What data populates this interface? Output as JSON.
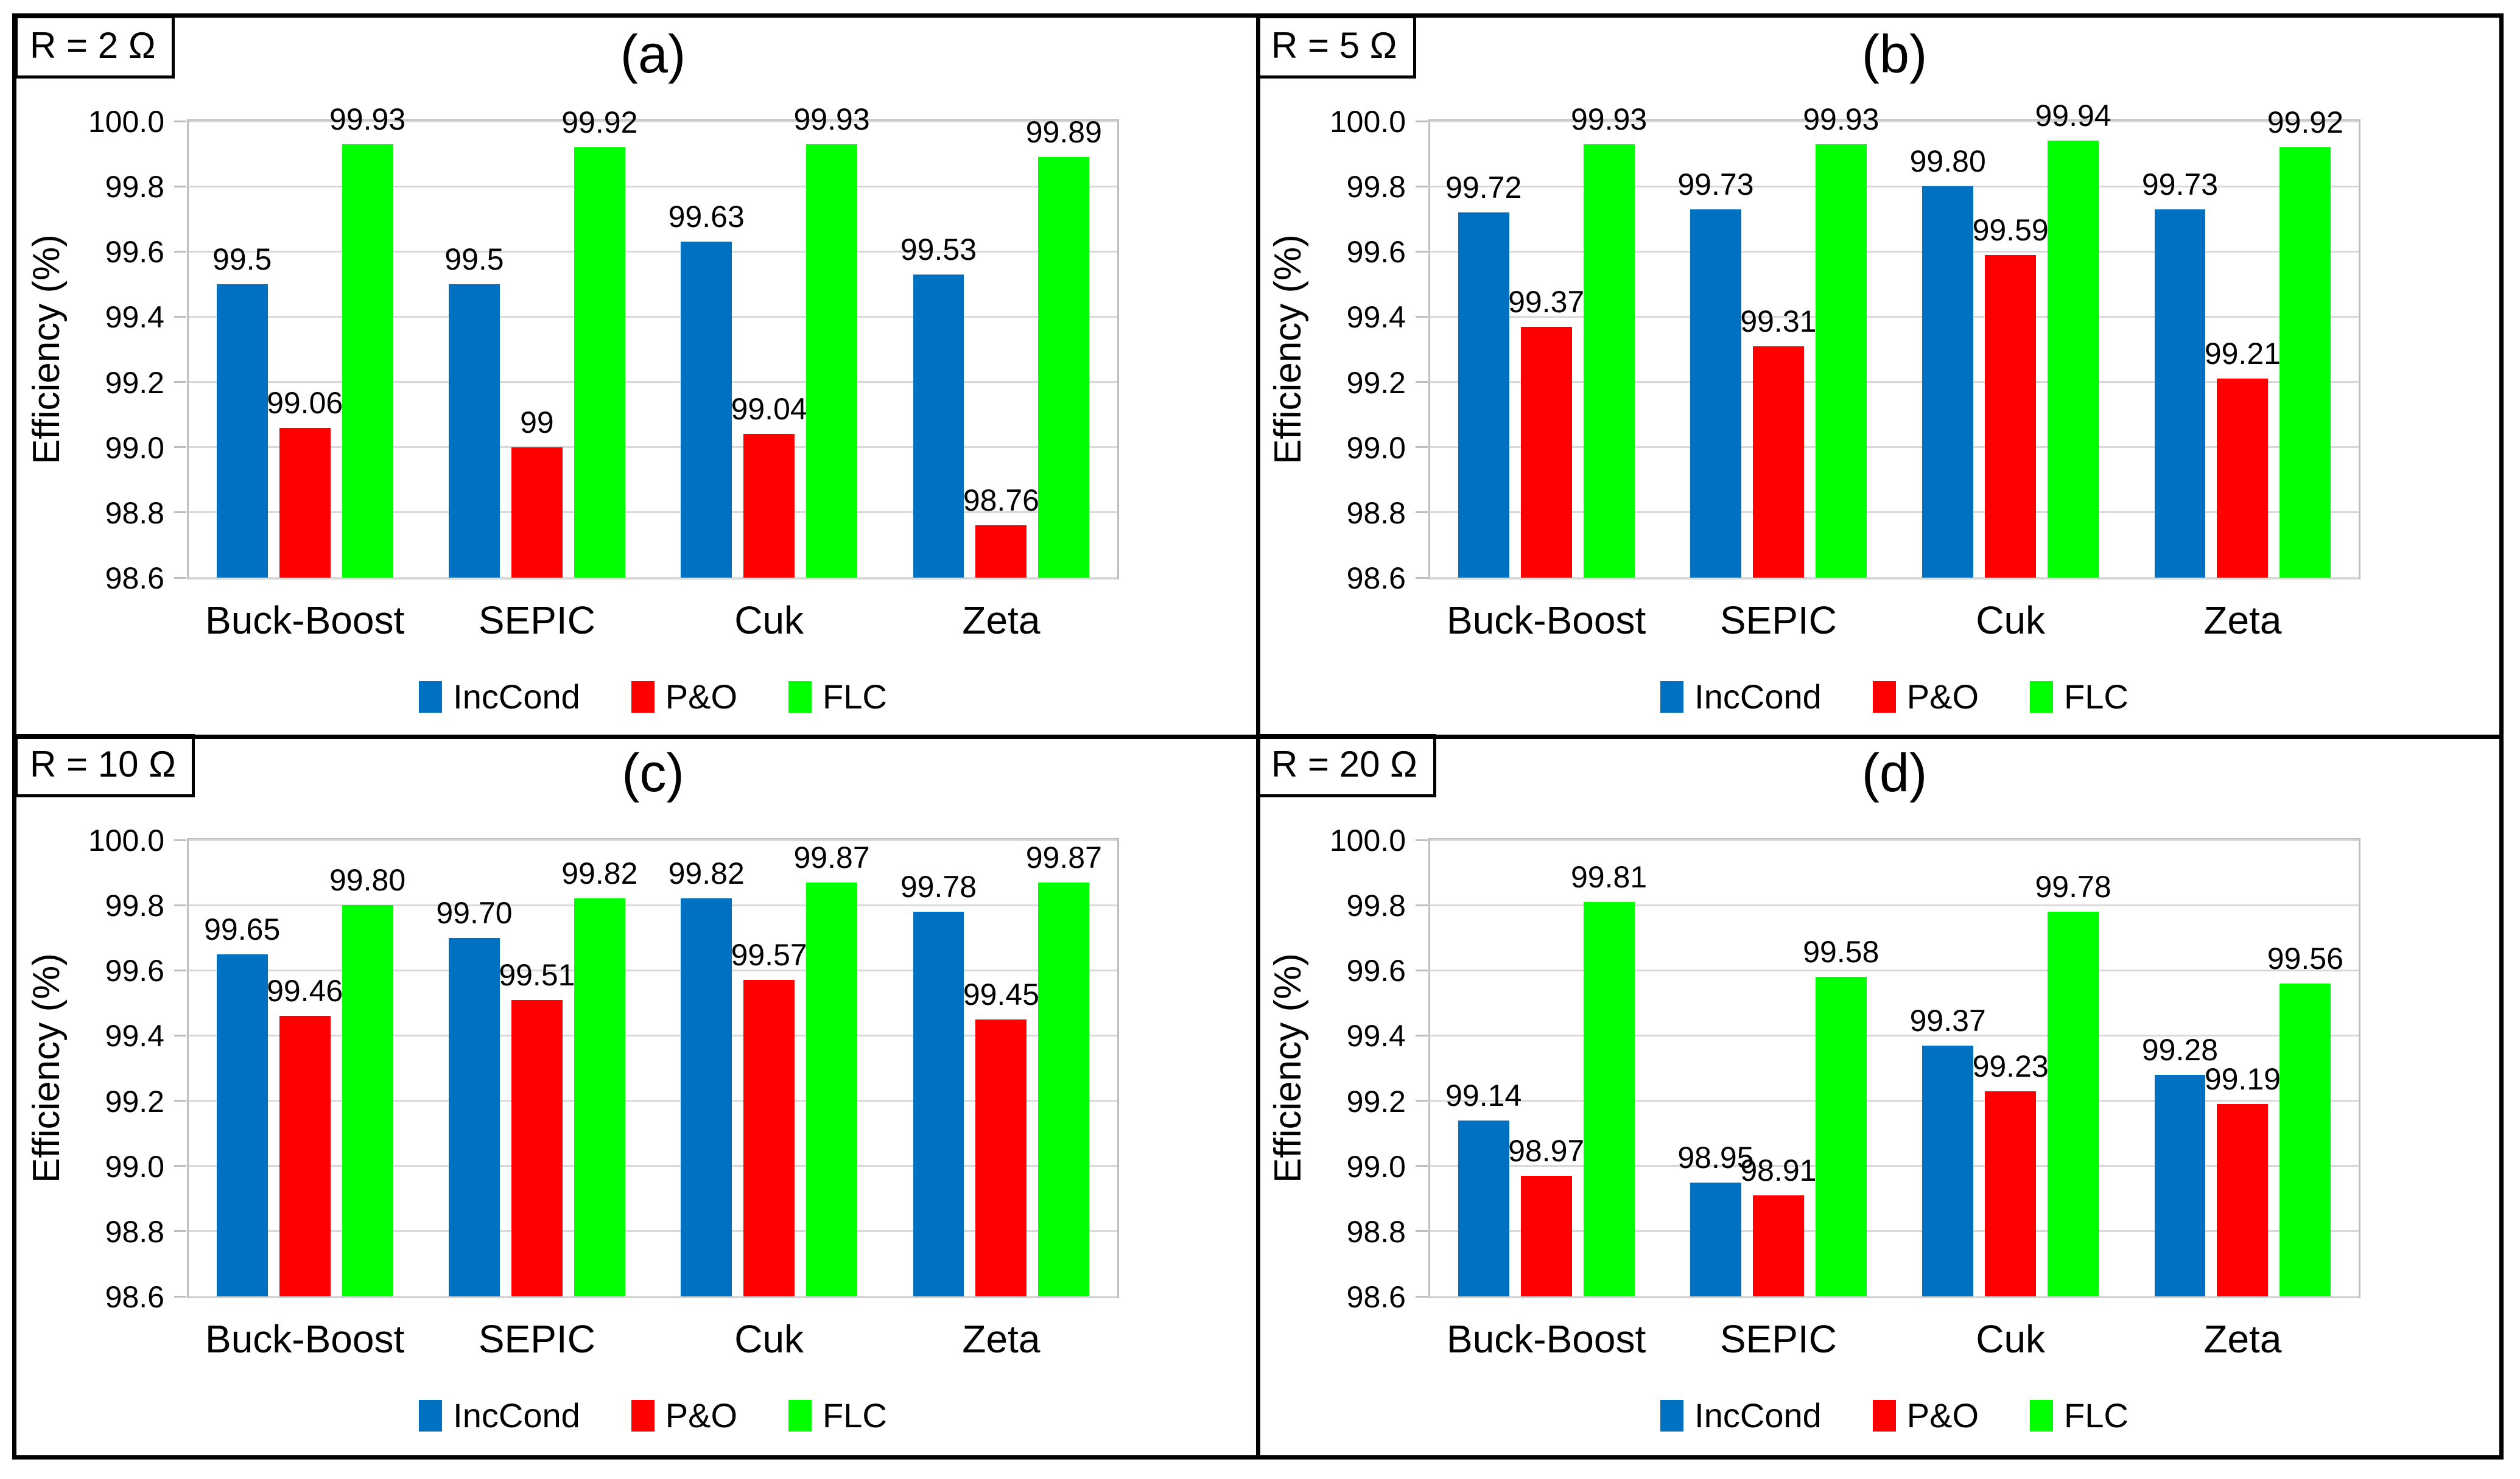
{
  "figure": {
    "background": "#FFFFFF",
    "border_color": "#000000"
  },
  "colors": {
    "inccond_blue": "#0070C0",
    "po_red": "#FF0000",
    "flc_green": "#00FF00",
    "gridline": "#D9D9D9",
    "plot_border": "#BFBFBF",
    "text": "#000000"
  },
  "legend": {
    "items": [
      {
        "label": "IncCond",
        "color": "#0070C0"
      },
      {
        "label": "P&O",
        "color": "#FF0000"
      },
      {
        "label": "FLC",
        "color": "#00FF00"
      }
    ]
  },
  "chart_data": [
    {
      "type": "bar",
      "id": "a",
      "panel_label": "(a)",
      "annotation": "R = 2 Ω",
      "categories": [
        "Buck-Boost",
        "SEPIC",
        "Cuk",
        "Zeta"
      ],
      "series": [
        {
          "name": "IncCond",
          "color": "#0070C0",
          "values": [
            99.5,
            99.5,
            99.63,
            99.53
          ],
          "labels": [
            "99.5",
            "99.5",
            "99.63",
            "99.53"
          ]
        },
        {
          "name": "P&O",
          "color": "#FF0000",
          "values": [
            99.06,
            99.0,
            99.04,
            98.76
          ],
          "labels": [
            "99.06",
            "99",
            "99.04",
            "98.76"
          ]
        },
        {
          "name": "FLC",
          "color": "#00FF00",
          "values": [
            99.93,
            99.92,
            99.93,
            99.89
          ],
          "labels": [
            "99.93",
            "99.92",
            "99.93",
            "99.89"
          ]
        }
      ],
      "ylabel": "Efficiency (%)",
      "ylim": [
        98.6,
        100.0
      ],
      "yticks": [
        "100.0",
        "99.8",
        "99.6",
        "99.4",
        "99.2",
        "99.0",
        "98.8",
        "98.6"
      ],
      "grid": true,
      "legend": [
        "IncCond",
        "P&O",
        "FLC"
      ],
      "legend_position": "bottom"
    },
    {
      "type": "bar",
      "id": "b",
      "panel_label": "(b)",
      "annotation": "R = 5 Ω",
      "categories": [
        "Buck-Boost",
        "SEPIC",
        "Cuk",
        "Zeta"
      ],
      "series": [
        {
          "name": "IncCond",
          "color": "#0070C0",
          "values": [
            99.72,
            99.73,
            99.8,
            99.73
          ],
          "labels": [
            "99.72",
            "99.73",
            "99.80",
            "99.73"
          ]
        },
        {
          "name": "P&O",
          "color": "#FF0000",
          "values": [
            99.37,
            99.31,
            99.59,
            99.21
          ],
          "labels": [
            "99.37",
            "99.31",
            "99.59",
            "99.21"
          ]
        },
        {
          "name": "FLC",
          "color": "#00FF00",
          "values": [
            99.93,
            99.93,
            99.94,
            99.92
          ],
          "labels": [
            "99.93",
            "99.93",
            "99.94",
            "99.92"
          ]
        }
      ],
      "ylabel": "Efficiency (%)",
      "ylim": [
        98.6,
        100.0
      ],
      "yticks": [
        "100.0",
        "99.8",
        "99.6",
        "99.4",
        "99.2",
        "99.0",
        "98.8",
        "98.6"
      ],
      "grid": true,
      "legend": [
        "IncCond",
        "P&O",
        "FLC"
      ],
      "legend_position": "bottom"
    },
    {
      "type": "bar",
      "id": "c",
      "panel_label": "(c)",
      "annotation": "R = 10 Ω",
      "categories": [
        "Buck-Boost",
        "SEPIC",
        "Cuk",
        "Zeta"
      ],
      "series": [
        {
          "name": "IncCond",
          "color": "#0070C0",
          "values": [
            99.65,
            99.7,
            99.82,
            99.78
          ],
          "labels": [
            "99.65",
            "99.70",
            "99.82",
            "99.78"
          ]
        },
        {
          "name": "P&O",
          "color": "#FF0000",
          "values": [
            99.46,
            99.51,
            99.57,
            99.45
          ],
          "labels": [
            "99.46",
            "99.51",
            "99.57",
            "99.45"
          ]
        },
        {
          "name": "FLC",
          "color": "#00FF00",
          "values": [
            99.8,
            99.82,
            99.87,
            99.87
          ],
          "labels": [
            "99.80",
            "99.82",
            "99.87",
            "99.87"
          ]
        }
      ],
      "ylabel": "Efficiency (%)",
      "ylim": [
        98.6,
        100.0
      ],
      "yticks": [
        "100.0",
        "99.8",
        "99.6",
        "99.4",
        "99.2",
        "99.0",
        "98.8",
        "98.6"
      ],
      "grid": true,
      "legend": [
        "IncCond",
        "P&O",
        "FLC"
      ],
      "legend_position": "bottom"
    },
    {
      "type": "bar",
      "id": "d",
      "panel_label": "(d)",
      "annotation": "R = 20 Ω",
      "categories": [
        "Buck-Boost",
        "SEPIC",
        "Cuk",
        "Zeta"
      ],
      "series": [
        {
          "name": "IncCond",
          "color": "#0070C0",
          "values": [
            99.14,
            98.95,
            99.37,
            99.28
          ],
          "labels": [
            "99.14",
            "98.95",
            "99.37",
            "99.28"
          ]
        },
        {
          "name": "P&O",
          "color": "#FF0000",
          "values": [
            98.97,
            98.91,
            99.23,
            99.19
          ],
          "labels": [
            "98.97",
            "98.91",
            "99.23",
            "99.19"
          ]
        },
        {
          "name": "FLC",
          "color": "#00FF00",
          "values": [
            99.81,
            99.58,
            99.78,
            99.56
          ],
          "labels": [
            "99.81",
            "99.58",
            "99.78",
            "99.56"
          ]
        }
      ],
      "ylabel": "Efficiency (%)",
      "ylim": [
        98.6,
        100.0
      ],
      "yticks": [
        "100.0",
        "99.8",
        "99.6",
        "99.4",
        "99.2",
        "99.0",
        "98.8",
        "98.6"
      ],
      "grid": true,
      "legend": [
        "IncCond",
        "P&O",
        "FLC"
      ],
      "legend_position": "bottom"
    }
  ]
}
